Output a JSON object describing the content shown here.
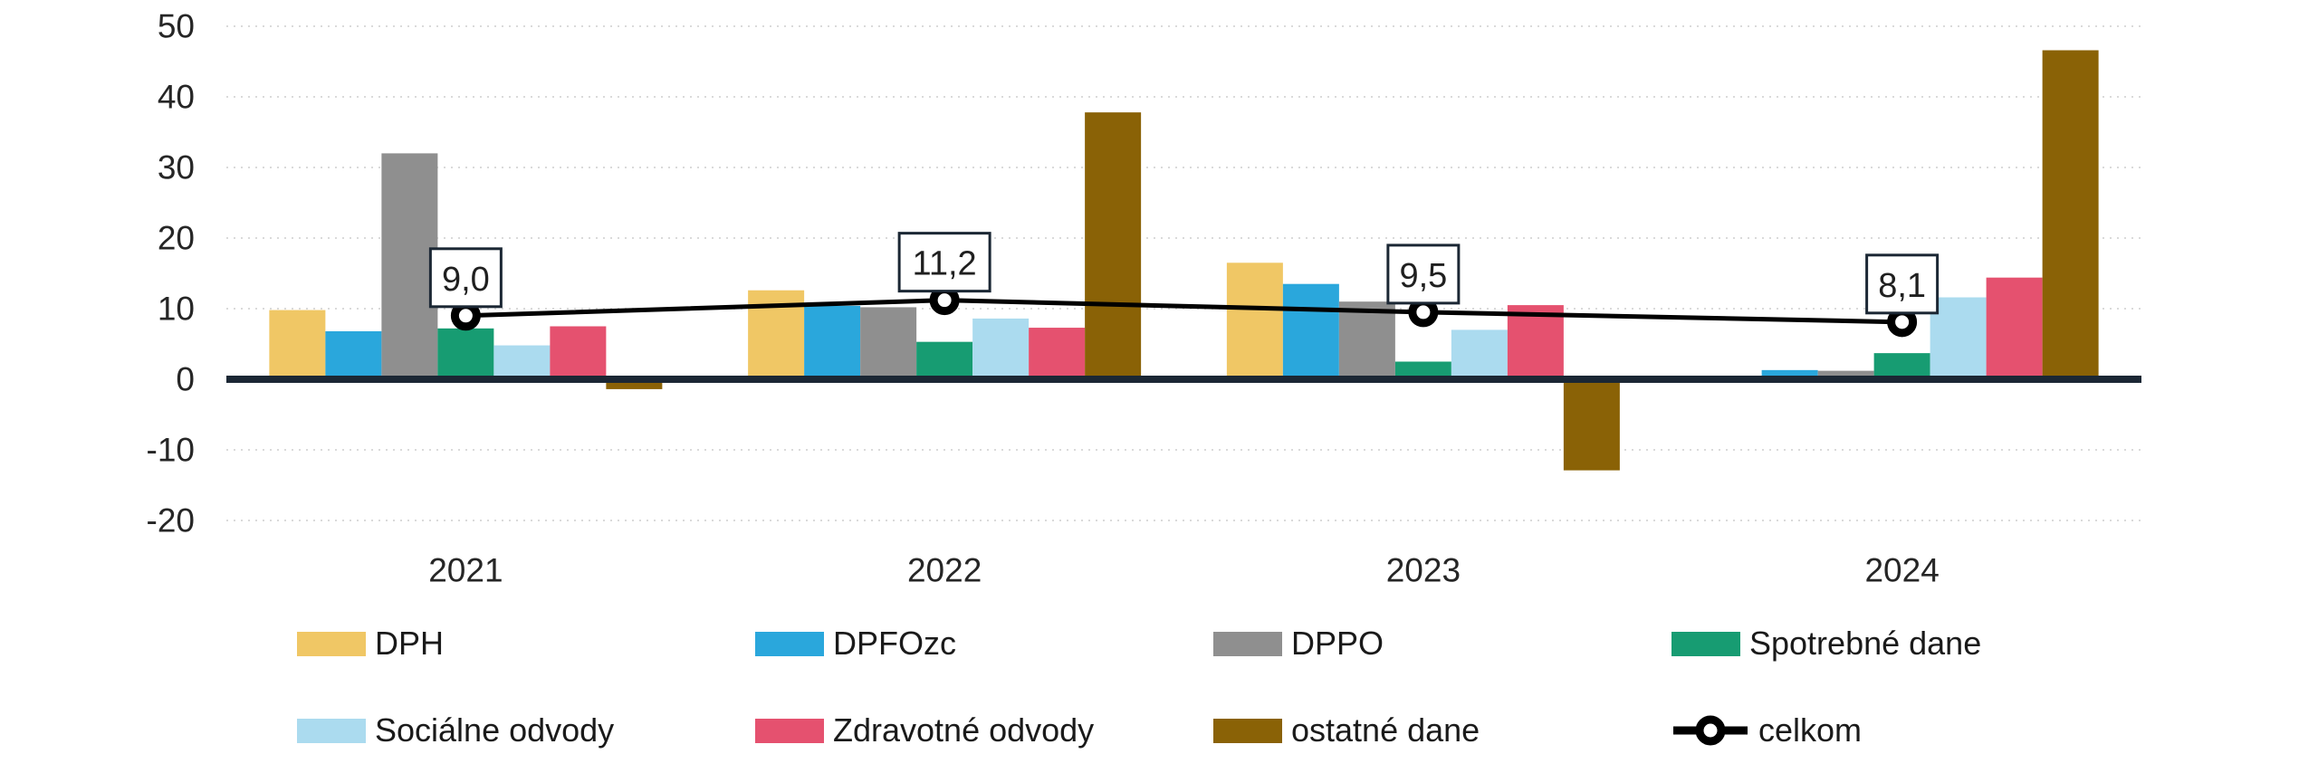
{
  "chart_data": {
    "type": "bar",
    "subtype": "grouped-bars-with-line-overlay",
    "categories": [
      "2021",
      "2022",
      "2023",
      "2024"
    ],
    "series": [
      {
        "name": "DPH",
        "color": "#F0C765",
        "values": [
          9.8,
          12.6,
          16.5,
          0.4
        ]
      },
      {
        "name": "DPFOzc",
        "color": "#2AA7DC",
        "values": [
          6.8,
          10.4,
          13.5,
          1.3
        ]
      },
      {
        "name": "DPPO",
        "color": "#8F8F8F",
        "values": [
          32.0,
          10.2,
          11.0,
          1.2
        ]
      },
      {
        "name": "Spotrebné dane",
        "color": "#179C72",
        "values": [
          7.2,
          5.3,
          2.5,
          3.7
        ]
      },
      {
        "name": "Sociálne odvody",
        "color": "#ABDBEF",
        "values": [
          4.8,
          8.6,
          7.0,
          11.6
        ]
      },
      {
        "name": "Zdravotné odvody",
        "color": "#E5516F",
        "values": [
          7.5,
          7.3,
          10.5,
          14.4
        ]
      },
      {
        "name": "ostatné dane",
        "color": "#8A6206",
        "values": [
          -1.4,
          37.8,
          -12.9,
          46.6
        ]
      }
    ],
    "line_series": {
      "name": "celkom",
      "color": "#000000",
      "values": [
        9.0,
        11.2,
        9.5,
        8.1
      ],
      "point_labels": [
        "9,0",
        "11,2",
        "9,5",
        "8,1"
      ]
    },
    "title": "",
    "xlabel": "",
    "ylabel": "",
    "ylim": [
      -20,
      50
    ],
    "yticks": [
      50,
      40,
      30,
      20,
      10,
      0,
      -10,
      -20
    ],
    "grid": "horizontal-dotted",
    "grid_color": "#DADADA",
    "axis_color": "#1B2734",
    "text_color": "#262626",
    "legend_position": "bottom"
  }
}
